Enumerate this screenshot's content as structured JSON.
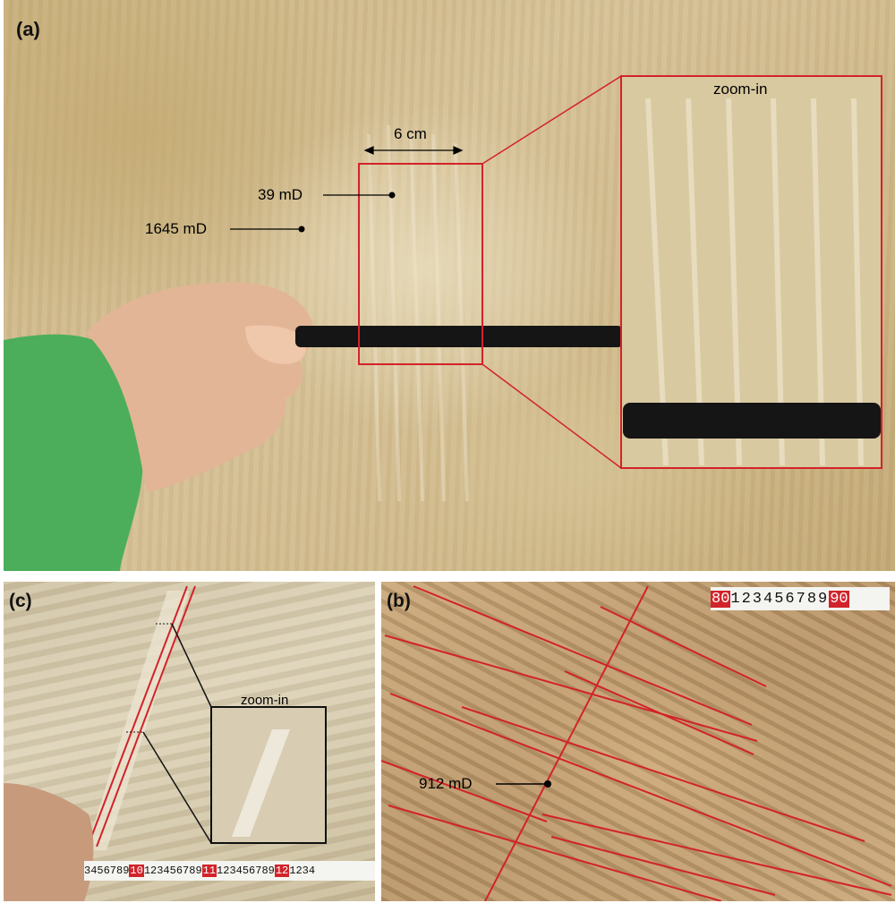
{
  "panels": {
    "a": {
      "label": "(a)",
      "zoom_label": "zoom-in",
      "scale_label": "6 cm",
      "measurements": [
        "39 mD",
        "1645 mD"
      ]
    },
    "b": {
      "label": "(b)",
      "measurement": "912 mD",
      "ruler": {
        "red_left": "80",
        "digits": "123456789",
        "red_right": "90"
      }
    },
    "c": {
      "label": "(c)",
      "zoom_label": "zoom-in",
      "ruler": {
        "start": "3456789",
        "red1": "10",
        "mid1": "123456789",
        "red2": "11",
        "mid2": "123456789",
        "red3": "12",
        "end": "1234"
      }
    }
  },
  "colors": {
    "annotation_red": "#d2232a",
    "sleeve_green": "#4cae5a",
    "rod_black": "#151515",
    "skin": "#e2b596"
  }
}
